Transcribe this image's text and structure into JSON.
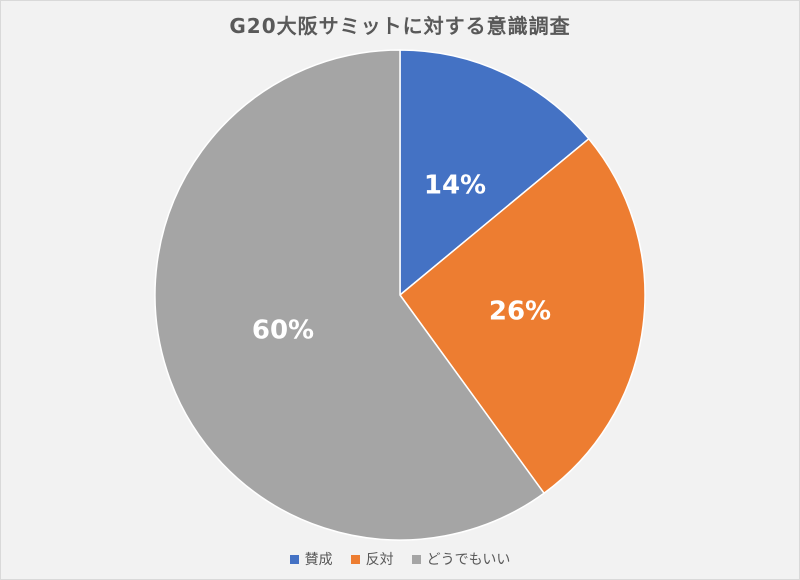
{
  "chart_data": {
    "type": "pie",
    "title": "G20大阪サミットに対する意識調査",
    "slices": [
      {
        "label": "賛成",
        "value": 14,
        "display": "14%",
        "color": "#4472c4"
      },
      {
        "label": "反対",
        "value": 26,
        "display": "26%",
        "color": "#ed7d31"
      },
      {
        "label": "どうでもいい",
        "value": 60,
        "display": "60%",
        "color": "#a5a5a5"
      }
    ],
    "legend_position": "bottom",
    "start_angle": "12 o'clock",
    "direction": "clockwise"
  }
}
